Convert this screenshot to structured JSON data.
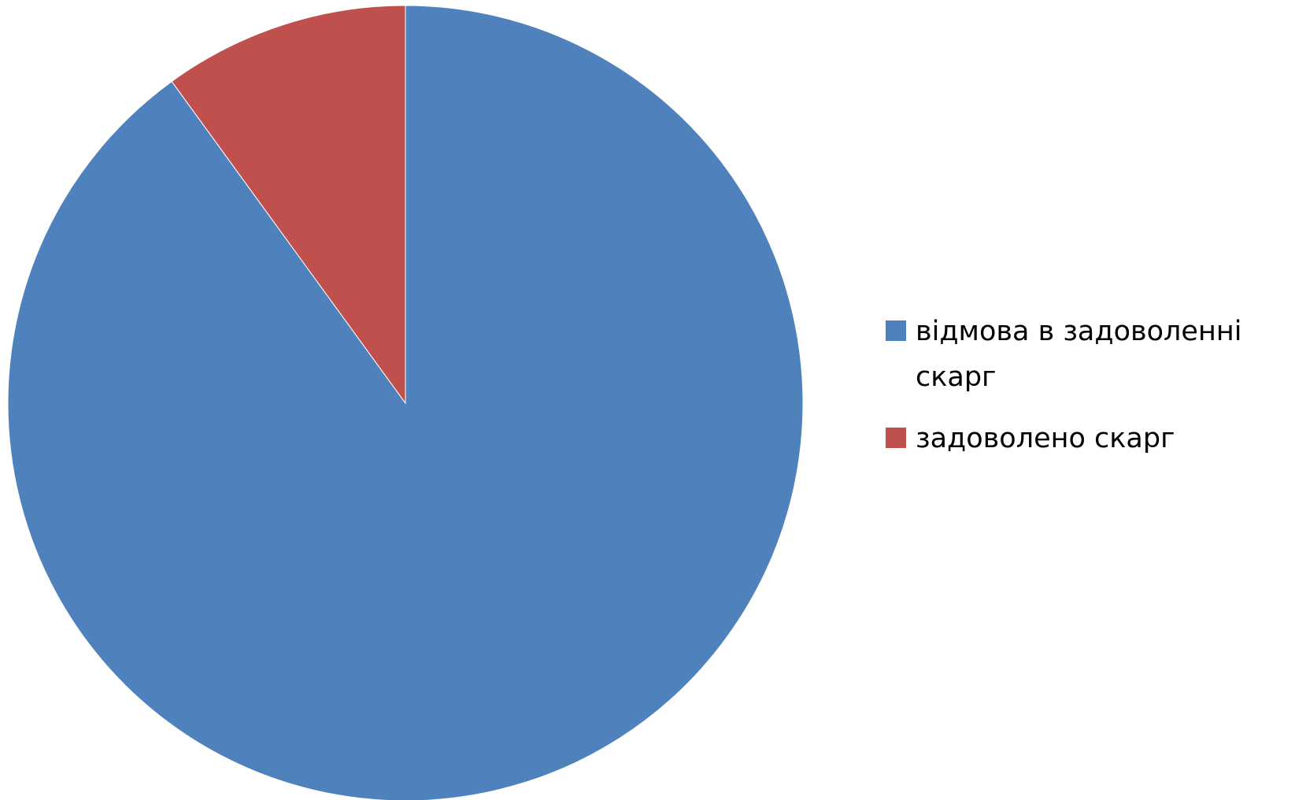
{
  "chart_data": {
    "type": "pie",
    "title": "",
    "start_angle_deg": 0,
    "direction": "clockwise",
    "legend_position": "right",
    "slices": [
      {
        "label": "відмова в задоволенні скарг",
        "value": 90,
        "color": "#4F81BD"
      },
      {
        "label": "задоволено скарг",
        "value": 10,
        "color": "#C0504D"
      }
    ]
  }
}
